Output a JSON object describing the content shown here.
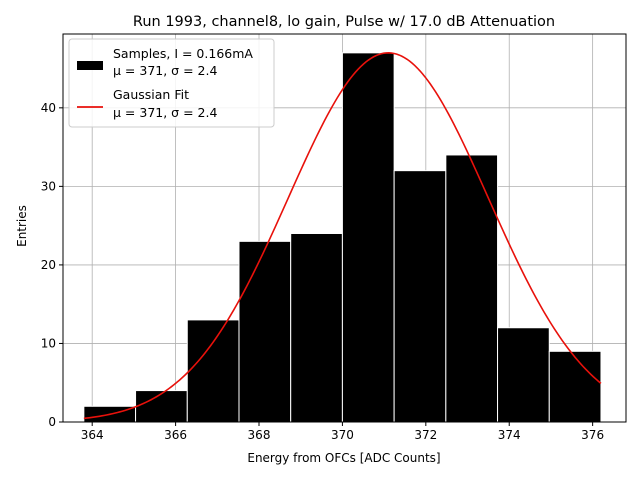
{
  "chart_data": {
    "type": "bar",
    "title": "Run 1993, channel8, lo gain, Pulse w/ 17.0 dB Attenuation",
    "xlabel": "Energy from OFCs [ADC Counts]",
    "ylabel": "Entries",
    "xlim": [
      363.3,
      376.8
    ],
    "ylim": [
      0,
      49.4
    ],
    "xticks": [
      364,
      366,
      368,
      370,
      372,
      374,
      376
    ],
    "yticks": [
      0,
      10,
      20,
      30,
      40
    ],
    "grid": true,
    "histogram": {
      "name": "Samples",
      "bin_edges": [
        363.8,
        365.04,
        366.28,
        367.52,
        368.76,
        370.0,
        371.24,
        372.48,
        373.72,
        374.96,
        376.2
      ],
      "counts": [
        2,
        4,
        13,
        23,
        24,
        47,
        32,
        34,
        12,
        9
      ],
      "color": "#000000"
    },
    "fit": {
      "name": "Gaussian Fit",
      "type": "gaussian",
      "amplitude": 47,
      "mean": 371.1,
      "sigma": 2.4,
      "x_range": [
        363.8,
        376.2
      ],
      "color": "#e8110b"
    },
    "legend": {
      "placement": "top-left",
      "entries": [
        {
          "line1": "Samples, I = 0.166mA",
          "line2": "μ = 371, σ = 2.4",
          "marker": "patch",
          "color": "#000000"
        },
        {
          "line1": "Gaussian Fit",
          "line2": "μ = 371, σ = 2.4",
          "marker": "line",
          "color": "#e8110b"
        }
      ]
    }
  }
}
